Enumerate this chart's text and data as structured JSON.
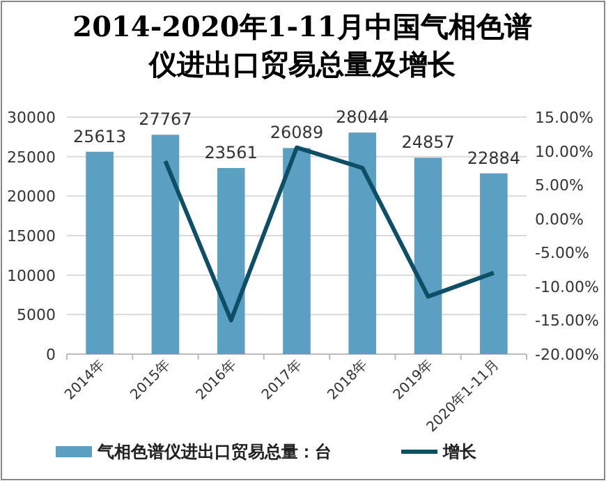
{
  "chart_data": {
    "type": "bar",
    "title": "2014-2020年1-11月中国气相色谱仪进出口贸易总量及增长",
    "categories": [
      "2014年",
      "2015年",
      "2016年",
      "2017年",
      "2018年",
      "2019年",
      "2020年1-11月"
    ],
    "series": [
      {
        "name": "气相色谱仪进出口贸易总量：台",
        "color": "#5b9fc2",
        "values": [
          25613,
          27767,
          23561,
          26089,
          28044,
          24857,
          22884
        ],
        "value_labels": [
          "25613",
          "27767",
          "23561",
          "26089",
          "28044",
          "24857",
          "22884"
        ]
      },
      {
        "name": "增长",
        "type": "line",
        "axis": "y2",
        "color": "#0e4f66",
        "values": [
          null,
          8.5,
          -15,
          10.5,
          7.5,
          -11.5,
          -8
        ]
      }
    ],
    "ylim": [
      0,
      30000
    ],
    "yticks": [
      0,
      5000,
      10000,
      15000,
      20000,
      25000,
      30000
    ],
    "y2lim": [
      -20,
      15
    ],
    "y2ticks": [
      {
        "value": -20,
        "label": "-20.00%"
      },
      {
        "value": -15,
        "label": "-15.00%"
      },
      {
        "value": -10,
        "label": "-10.00%"
      },
      {
        "value": -5,
        "label": "-5.00%"
      },
      {
        "value": 0,
        "label": "0.00%"
      },
      {
        "value": 5,
        "label": "5.00%"
      },
      {
        "value": 10,
        "label": "10.00%"
      },
      {
        "value": 15,
        "label": "15.00%"
      }
    ],
    "grid": "y",
    "legend": "bottom",
    "marker": "none",
    "line_style": "solid"
  }
}
